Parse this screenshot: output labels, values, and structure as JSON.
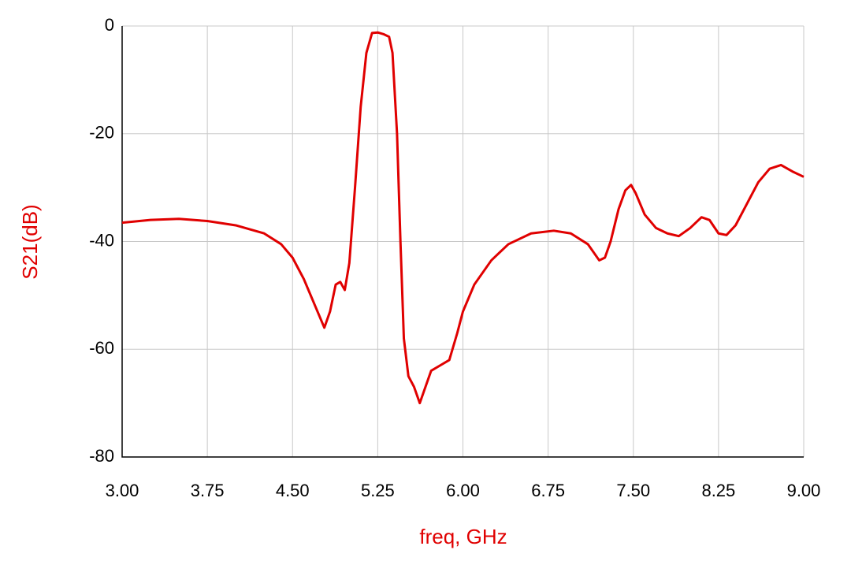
{
  "chart_data": {
    "type": "line",
    "x_label": "freq, GHz",
    "y_label": "S21(dB)",
    "xlim": [
      3.0,
      9.0
    ],
    "xticks": [
      {
        "value": 3.0,
        "label": "3.00"
      },
      {
        "value": 3.75,
        "label": "3.75"
      },
      {
        "value": 4.5,
        "label": "4.50"
      },
      {
        "value": 5.25,
        "label": "5.25"
      },
      {
        "value": 6.0,
        "label": "6.00"
      },
      {
        "value": 6.75,
        "label": "6.75"
      },
      {
        "value": 7.5,
        "label": "7.50"
      },
      {
        "value": 8.25,
        "label": "8.25"
      },
      {
        "value": 9.0,
        "label": "9.00"
      }
    ],
    "ylim": [
      -80,
      0
    ],
    "yticks": [
      -80,
      -60,
      -40,
      -20,
      0
    ],
    "grid": true,
    "x": [
      3.0,
      3.1,
      3.25,
      3.5,
      3.75,
      4.0,
      4.25,
      4.4,
      4.5,
      4.6,
      4.7,
      4.78,
      4.83,
      4.88,
      4.92,
      4.96,
      5.0,
      5.05,
      5.1,
      5.15,
      5.2,
      5.25,
      5.3,
      5.35,
      5.38,
      5.42,
      5.45,
      5.48,
      5.52,
      5.57,
      5.62,
      5.67,
      5.72,
      5.8,
      5.88,
      5.95,
      6.0,
      6.1,
      6.25,
      6.4,
      6.6,
      6.8,
      6.95,
      7.1,
      7.2,
      7.25,
      7.3,
      7.37,
      7.43,
      7.48,
      7.52,
      7.6,
      7.7,
      7.8,
      7.9,
      8.0,
      8.1,
      8.17,
      8.25,
      8.32,
      8.4,
      8.5,
      8.6,
      8.7,
      8.8,
      8.9,
      9.0
    ],
    "series": [
      {
        "name": "S21",
        "color": "#e00000",
        "values": [
          -36.5,
          -36.3,
          -36,
          -35.8,
          -36.2,
          -37,
          -38.5,
          -40.5,
          -43,
          -47,
          -52,
          -56,
          -53,
          -48,
          -47.5,
          -49,
          -44,
          -30,
          -15,
          -5,
          -1.3,
          -1.2,
          -1.5,
          -2,
          -5,
          -20,
          -40,
          -58,
          -65,
          -67,
          -70,
          -67,
          -64,
          -63,
          -62,
          -57,
          -53,
          -48,
          -43.5,
          -40.5,
          -38.5,
          -38,
          -38.5,
          -40.5,
          -43.5,
          -43,
          -40,
          -34,
          -30.5,
          -29.5,
          -31,
          -35,
          -37.5,
          -38.5,
          -39,
          -37.5,
          -35.5,
          -36,
          -38.5,
          -38.8,
          -37,
          -33,
          -29,
          -26.5,
          -25.8,
          -27,
          -28
        ]
      }
    ]
  }
}
